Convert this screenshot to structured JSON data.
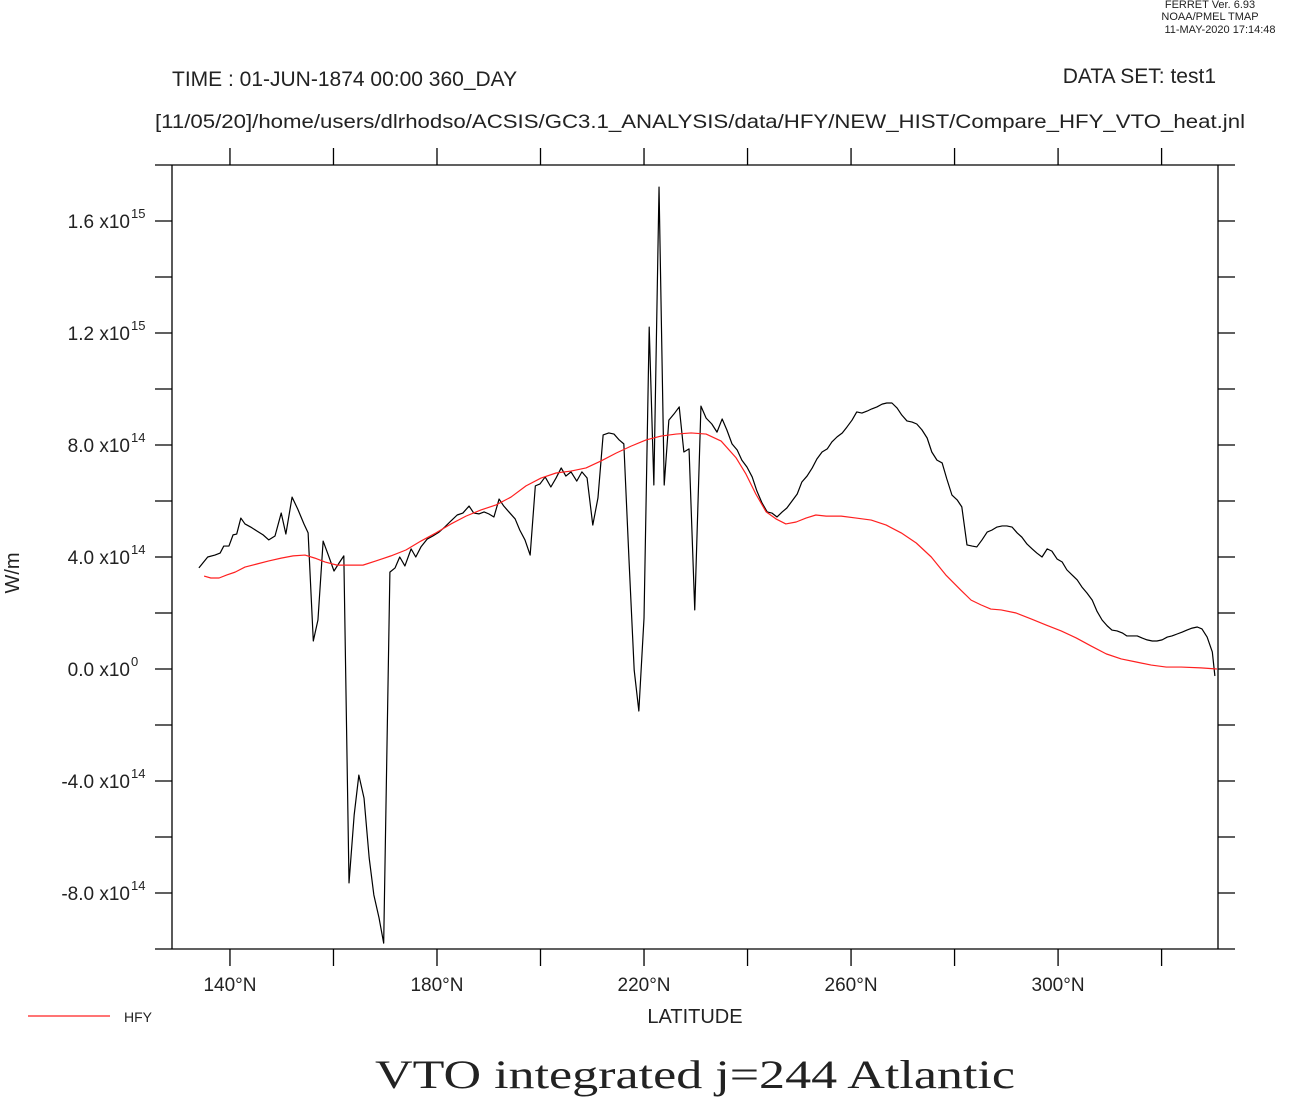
{
  "chart_data": {
    "type": "line",
    "program_lines": [
      "FERRET Ver. 6.93",
      "NOAA/PMEL TMAP",
      "11-MAY-2020 17:14:48"
    ],
    "time_label": "TIME : 01-JUN-1874 00:00 360_DAY",
    "dataset_label": "DATA SET: test1",
    "subtitle": "[11/05/20]/home/users/dlrhodso/ACSIS/GC3.1_ANALYSIS/data/HFY/NEW_HIST/Compare_HFY_VTO_heat.jnl",
    "title": "VTO integrated j=244 Atlantic",
    "x_label": "LATITUDE",
    "y_label": "W/m",
    "xlim": [
      128.8,
      330.9
    ],
    "ylim": [
      -1000000000000000.0,
      1800000000000000.0
    ],
    "xticks": [
      {
        "value": 140,
        "label": "140°N"
      },
      {
        "value": 180,
        "label": "180°N"
      },
      {
        "value": 220,
        "label": "220°N"
      },
      {
        "value": 260,
        "label": "260°N"
      },
      {
        "value": 300,
        "label": "300°N"
      }
    ],
    "xminorticks": [
      160,
      200,
      240,
      280,
      320
    ],
    "yticks": [
      {
        "value": -800000000000000.0,
        "label": "-8.0 x10",
        "exponent": "14"
      },
      {
        "value": -400000000000000.0,
        "label": "-4.0 x10",
        "exponent": "14"
      },
      {
        "value": 0,
        "label": "0.0 x10",
        "exponent": "0"
      },
      {
        "value": 400000000000000.0,
        "label": "4.0 x10",
        "exponent": "14"
      },
      {
        "value": 800000000000000.0,
        "label": "8.0 x10",
        "exponent": "14"
      },
      {
        "value": 1200000000000000.0,
        "label": "1.2 x10",
        "exponent": "15"
      },
      {
        "value": 1600000000000000.0,
        "label": "1.6 x10",
        "exponent": "15"
      }
    ],
    "yminorticks": [
      -600000000000000.0,
      -200000000000000.0,
      200000000000000.0,
      600000000000000.0,
      1000000000000000.0,
      1400000000000000.0
    ],
    "grid": false,
    "legend": "bottom-left",
    "series": [
      {
        "color": "#000000",
        "x": [
          134.0,
          135.7,
          137.1,
          138.1,
          138.8,
          139.8,
          140.6,
          141.3,
          142.1,
          142.9,
          144.0,
          145.2,
          146.4,
          147.5,
          148.7,
          149.9,
          150.8,
          152.0,
          153.1,
          154.3,
          155.1,
          156.1,
          157.0,
          158.0,
          159.0,
          160.1,
          161.1,
          162.0,
          163.0,
          164.0,
          164.9,
          165.9,
          166.9,
          167.8,
          168.8,
          169.7,
          170.9,
          171.9,
          172.8,
          173.8,
          175.0,
          175.9,
          176.9,
          178.1,
          179.2,
          180.4,
          181.5,
          182.7,
          183.9,
          185.0,
          186.2,
          187.1,
          188.1,
          189.1,
          190.0,
          191.0,
          192.0,
          192.9,
          193.9,
          195.1,
          196.0,
          197.0,
          198.0,
          199.0,
          199.9,
          200.9,
          202.0,
          203.0,
          204.0,
          204.9,
          205.9,
          207.0,
          208.0,
          209.0,
          210.1,
          211.1,
          212.1,
          213.2,
          214.2,
          215.2,
          216.1,
          217.1,
          218.1,
          219.0,
          220.0,
          221.0,
          221.9,
          222.9,
          223.9,
          224.8,
          225.8,
          226.8,
          227.7,
          228.7,
          229.8,
          231.0,
          232.0,
          233.1,
          234.1,
          235.1,
          236.0,
          237.0,
          238.0,
          238.9,
          239.9,
          240.9,
          241.8,
          242.8,
          243.8,
          244.7,
          245.7,
          246.7,
          247.6,
          248.6,
          249.6,
          250.5,
          251.5,
          252.5,
          253.4,
          254.4,
          255.4,
          256.3,
          257.3,
          258.3,
          259.2,
          260.2,
          261.1,
          262.1,
          263.1,
          264.0,
          265.0,
          266.0,
          266.9,
          267.9,
          268.9,
          269.8,
          270.8,
          271.8,
          272.7,
          273.7,
          274.7,
          275.6,
          276.6,
          277.6,
          278.5,
          279.5,
          280.5,
          281.4,
          282.4,
          283.4,
          284.3,
          285.3,
          286.3,
          287.2,
          288.2,
          289.2,
          290.1,
          291.1,
          292.1,
          293.0,
          294.0,
          295.0,
          295.9,
          296.9,
          297.9,
          298.8,
          299.8,
          300.8,
          301.7,
          302.7,
          303.7,
          304.6,
          305.6,
          306.6,
          307.5,
          308.5,
          309.5,
          310.4,
          311.4,
          312.4,
          313.3,
          314.3,
          315.3,
          316.2,
          317.2,
          318.2,
          319.1,
          320.1,
          321.1,
          322.0,
          323.0,
          324.0,
          324.9,
          325.9,
          326.9,
          327.8,
          328.8,
          329.8,
          330.3
        ],
        "values": [
          361000000000000.0,
          400000000000000.0,
          407000000000000.0,
          414000000000000.0,
          439000000000000.0,
          439000000000000.0,
          479000000000000.0,
          482000000000000.0,
          539000000000000.0,
          518000000000000.0,
          507000000000000.0,
          493000000000000.0,
          479000000000000.0,
          461000000000000.0,
          475000000000000.0,
          557000000000000.0,
          482000000000000.0,
          614000000000000.0,
          571000000000000.0,
          518000000000000.0,
          486000000000000.0,
          100000000000000.0,
          175000000000000.0,
          457000000000000.0,
          407000000000000.0,
          350000000000000.0,
          379000000000000.0,
          404000000000000.0,
          -764000000000000.0,
          -521000000000000.0,
          -379000000000000.0,
          -461000000000000.0,
          -675000000000000.0,
          -807000000000000.0,
          -889000000000000.0,
          -979000000000000.0,
          346000000000000.0,
          361000000000000.0,
          400000000000000.0,
          368000000000000.0,
          429000000000000.0,
          400000000000000.0,
          436000000000000.0,
          464000000000000.0,
          475000000000000.0,
          489000000000000.0,
          507000000000000.0,
          529000000000000.0,
          550000000000000.0,
          557000000000000.0,
          582000000000000.0,
          557000000000000.0,
          554000000000000.0,
          561000000000000.0,
          554000000000000.0,
          543000000000000.0,
          607000000000000.0,
          582000000000000.0,
          561000000000000.0,
          536000000000000.0,
          496000000000000.0,
          461000000000000.0,
          407000000000000.0,
          654000000000000.0,
          661000000000000.0,
          686000000000000.0,
          650000000000000.0,
          682000000000000.0,
          718000000000000.0,
          689000000000000.0,
          704000000000000.0,
          671000000000000.0,
          704000000000000.0,
          682000000000000.0,
          514000000000000.0,
          611000000000000.0,
          836000000000000.0,
          843000000000000.0,
          839000000000000.0,
          818000000000000.0,
          804000000000000.0,
          389000000000000.0,
          -4000000000000.0,
          -150000000000000.0,
          182000000000000.0,
          1221000000000000.0,
          657000000000000.0,
          1721000000000000.0,
          657000000000000.0,
          889000000000000.0,
          911000000000000.0,
          936000000000000.0,
          775000000000000.0,
          786000000000000.0,
          211000000000000.0,
          939000000000000.0,
          896000000000000.0,
          875000000000000.0,
          846000000000000.0,
          893000000000000.0,
          854000000000000.0,
          804000000000000.0,
          782000000000000.0,
          746000000000000.0,
          721000000000000.0,
          686000000000000.0,
          636000000000000.0,
          593000000000000.0,
          561000000000000.0,
          557000000000000.0,
          543000000000000.0,
          561000000000000.0,
          575000000000000.0,
          600000000000000.0,
          625000000000000.0,
          668000000000000.0,
          689000000000000.0,
          718000000000000.0,
          750000000000000.0,
          775000000000000.0,
          786000000000000.0,
          811000000000000.0,
          829000000000000.0,
          843000000000000.0,
          864000000000000.0,
          889000000000000.0,
          918000000000000.0,
          914000000000000.0,
          921000000000000.0,
          929000000000000.0,
          936000000000000.0,
          946000000000000.0,
          950000000000000.0,
          950000000000000.0,
          932000000000000.0,
          907000000000000.0,
          886000000000000.0,
          882000000000000.0,
          875000000000000.0,
          854000000000000.0,
          825000000000000.0,
          775000000000000.0,
          746000000000000.0,
          736000000000000.0,
          679000000000000.0,
          621000000000000.0,
          604000000000000.0,
          579000000000000.0,
          443000000000000.0,
          439000000000000.0,
          436000000000000.0,
          461000000000000.0,
          489000000000000.0,
          496000000000000.0,
          507000000000000.0,
          511000000000000.0,
          511000000000000.0,
          507000000000000.0,
          486000000000000.0,
          471000000000000.0,
          446000000000000.0,
          429000000000000.0,
          414000000000000.0,
          400000000000000.0,
          429000000000000.0,
          421000000000000.0,
          393000000000000.0,
          382000000000000.0,
          354000000000000.0,
          336000000000000.0,
          318000000000000.0,
          293000000000000.0,
          271000000000000.0,
          246000000000000.0,
          207000000000000.0,
          175000000000000.0,
          154000000000000.0,
          139000000000000.0,
          136000000000000.0,
          129000000000000.0,
          118000000000000.0,
          118000000000000.0,
          118000000000000.0,
          111000000000000.0,
          104000000000000.0,
          100000000000000.0,
          100000000000000.0,
          104000000000000.0,
          114000000000000.0,
          118000000000000.0,
          125000000000000.0,
          132000000000000.0,
          139000000000000.0,
          146000000000000.0,
          150000000000000.0,
          143000000000000.0,
          114000000000000.0,
          61000000000000.0,
          -25000000000000.0
        ]
      },
      {
        "name": "HFY",
        "color": "#ff2020",
        "x": [
          135.0,
          136.3,
          137.9,
          139.4,
          141.0,
          142.9,
          145.2,
          147.5,
          149.9,
          152.2,
          154.5,
          156.4,
          158.4,
          160.7,
          163.0,
          165.7,
          168.2,
          171.1,
          174.0,
          176.9,
          179.8,
          182.7,
          185.6,
          188.5,
          191.4,
          194.3,
          197.2,
          200.1,
          203.0,
          205.9,
          208.8,
          211.7,
          214.6,
          217.5,
          220.4,
          223.3,
          226.2,
          229.1,
          232.0,
          234.9,
          237.8,
          239.7,
          241.6,
          243.6,
          245.5,
          247.4,
          249.4,
          251.3,
          253.2,
          255.2,
          258.1,
          261.0,
          263.9,
          266.8,
          269.7,
          272.6,
          275.5,
          278.3,
          281.2,
          283.2,
          285.1,
          287.0,
          289.0,
          291.9,
          294.8,
          297.7,
          300.6,
          303.5,
          306.4,
          309.3,
          312.2,
          315.1,
          318.0,
          320.9,
          323.8,
          327.6,
          330.7
        ],
        "values": [
          332000000000000.0,
          325000000000000.0,
          325000000000000.0,
          336000000000000.0,
          346000000000000.0,
          364000000000000.0,
          375000000000000.0,
          386000000000000.0,
          396000000000000.0,
          404000000000000.0,
          407000000000000.0,
          396000000000000.0,
          382000000000000.0,
          371000000000000.0,
          371000000000000.0,
          371000000000000.0,
          386000000000000.0,
          404000000000000.0,
          425000000000000.0,
          457000000000000.0,
          486000000000000.0,
          518000000000000.0,
          546000000000000.0,
          568000000000000.0,
          586000000000000.0,
          614000000000000.0,
          654000000000000.0,
          682000000000000.0,
          700000000000000.0,
          707000000000000.0,
          718000000000000.0,
          743000000000000.0,
          771000000000000.0,
          796000000000000.0,
          818000000000000.0,
          832000000000000.0,
          839000000000000.0,
          843000000000000.0,
          839000000000000.0,
          814000000000000.0,
          754000000000000.0,
          696000000000000.0,
          625000000000000.0,
          561000000000000.0,
          536000000000000.0,
          518000000000000.0,
          525000000000000.0,
          539000000000000.0,
          550000000000000.0,
          546000000000000.0,
          546000000000000.0,
          539000000000000.0,
          532000000000000.0,
          514000000000000.0,
          486000000000000.0,
          450000000000000.0,
          400000000000000.0,
          336000000000000.0,
          282000000000000.0,
          246000000000000.0,
          229000000000000.0,
          214000000000000.0,
          211000000000000.0,
          200000000000000.0,
          179000000000000.0,
          157000000000000.0,
          136000000000000.0,
          111000000000000.0,
          82000000000000.0,
          54000000000000.0,
          36000000000000.0,
          25000000000000.0,
          14000000000000.0,
          7000000000000.0,
          7000000000000.0,
          4000000000000.0,
          0
        ]
      }
    ]
  }
}
